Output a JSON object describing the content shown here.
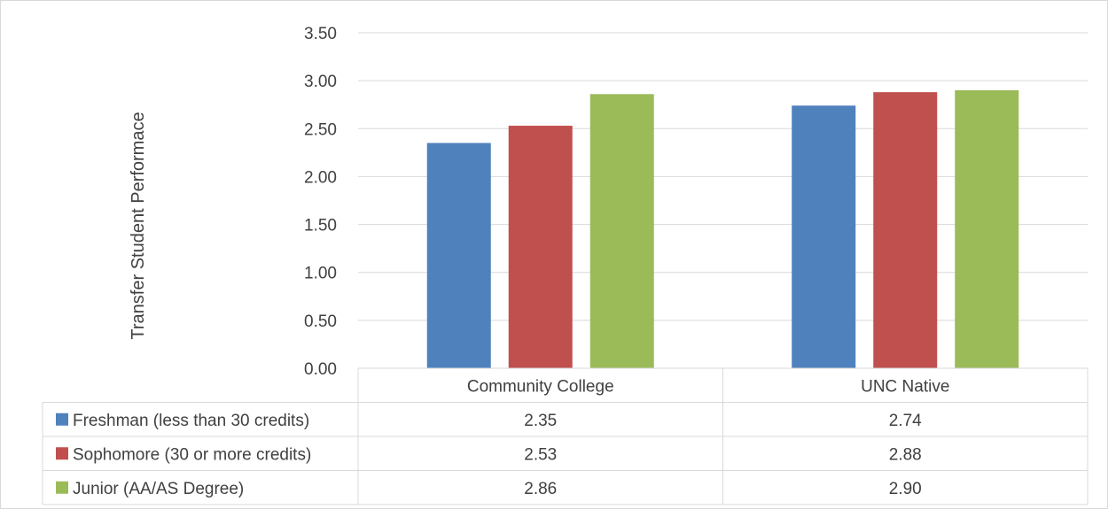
{
  "chart_data": {
    "type": "bar",
    "title": "",
    "ylabel": "Transfer Student Performace",
    "xlabel": "",
    "ylim": [
      0,
      3.5
    ],
    "ytick_step": 0.5,
    "yticks": [
      "0.00",
      "0.50",
      "1.00",
      "1.50",
      "2.00",
      "2.50",
      "3.00",
      "3.50"
    ],
    "grid": true,
    "legend": "data-table",
    "categories": [
      "Community College",
      "UNC Native"
    ],
    "series": [
      {
        "name": "Freshman (less than 30 credits)",
        "color": "#4F81BD",
        "values": [
          2.35,
          2.74
        ],
        "labels": [
          "2.35",
          "2.74"
        ]
      },
      {
        "name": "Sophomore (30 or more credits)",
        "color": "#C0504D",
        "values": [
          2.53,
          2.88
        ],
        "labels": [
          "2.53",
          "2.88"
        ]
      },
      {
        "name": "Junior (AA/AS Degree)",
        "color": "#9BBB59",
        "values": [
          2.86,
          2.9
        ],
        "labels": [
          "2.86",
          "2.90"
        ]
      }
    ]
  }
}
